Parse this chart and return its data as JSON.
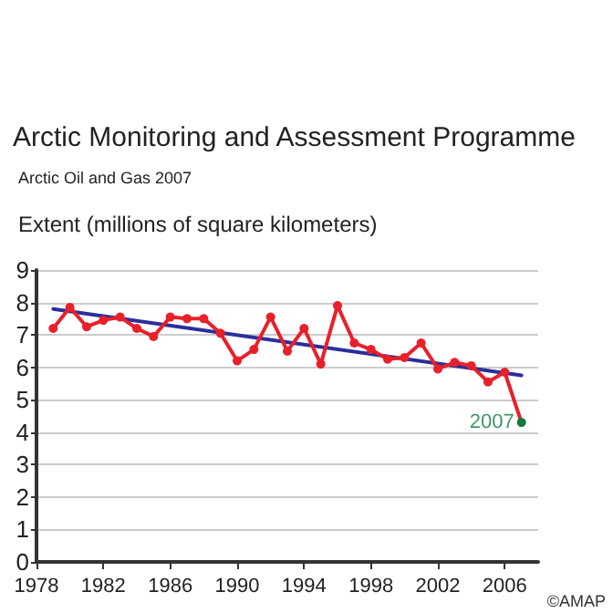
{
  "chart_data": {
    "type": "line",
    "title": "Arctic Monitoring and Assessment Programme",
    "subtitle": "Arctic Oil and Gas 2007",
    "ylabel": "Extent (millions of square kilometers)",
    "series": [
      {
        "color": "#e8202a",
        "marker": "circle",
        "x": [
          1979,
          1980,
          1981,
          1982,
          1983,
          1984,
          1985,
          1986,
          1987,
          1988,
          1989,
          1990,
          1991,
          1992,
          1993,
          1994,
          1995,
          1996,
          1997,
          1998,
          1999,
          2000,
          2001,
          2002,
          2003,
          2004,
          2005,
          2006,
          2007
        ],
        "values": [
          7.2,
          7.85,
          7.25,
          7.45,
          7.55,
          7.2,
          6.95,
          7.55,
          7.5,
          7.5,
          7.05,
          6.2,
          6.55,
          7.55,
          6.5,
          7.2,
          6.1,
          7.9,
          6.75,
          6.55,
          6.25,
          6.3,
          6.75,
          5.95,
          6.15,
          6.05,
          5.55,
          5.85,
          4.3
        ],
        "colors": [
          "#e8202a",
          "#e8202a",
          "#e8202a",
          "#e8202a",
          "#e8202a",
          "#e8202a",
          "#e8202a",
          "#e8202a",
          "#e8202a",
          "#e8202a",
          "#e8202a",
          "#e8202a",
          "#e8202a",
          "#e8202a",
          "#e8202a",
          "#e8202a",
          "#e8202a",
          "#e8202a",
          "#e8202a",
          "#e8202a",
          "#e8202a",
          "#e8202a",
          "#e8202a",
          "#e8202a",
          "#e8202a",
          "#e8202a",
          "#e8202a",
          "#e8202a",
          "#117a3c"
        ]
      },
      {
        "color": "#2b2f9a",
        "marker": "none",
        "x": [
          1979,
          2007
        ],
        "values": [
          7.8,
          5.75
        ]
      }
    ],
    "annotations": [
      {
        "text": "2007",
        "x": 2007,
        "y": 4.3
      },
      "©AMAP"
    ],
    "xlim": [
      1978,
      2008
    ],
    "xticks": [
      1978,
      1982,
      1986,
      1990,
      1994,
      1998,
      2002,
      2006
    ],
    "ylim": [
      0,
      9
    ],
    "yticks": [
      0,
      1,
      2,
      3,
      4,
      5,
      6,
      7,
      8,
      9
    ],
    "grid": "y"
  }
}
